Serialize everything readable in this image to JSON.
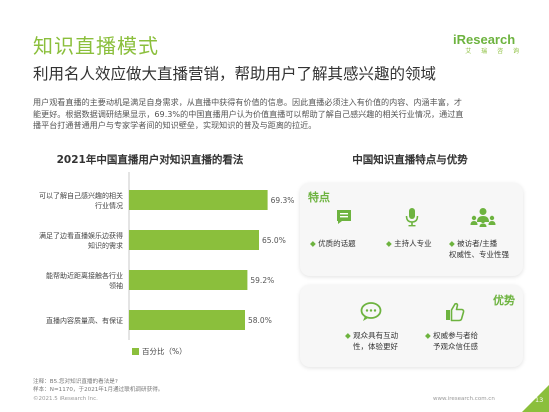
{
  "page": {
    "title": "知识直播模式",
    "subtitle": "利用名人效应做大直播营销，帮助用户了解其感兴趣的领域",
    "paragraph_lines": [
      "用户观看直播的主要动机是满足自身需求，从直播中获得有价值的信息。因此直播必须注入有价值的内容、内涵丰富，才",
      "能更好。根据数据调研结果显示，69.3%的中国直播用户认为价值直播可以帮助了解自己感兴趣的相关行业情况，通过直",
      "播平台打通普通用户与专家学者间的知识壁垒，实现知识的普及与距离的拉近。"
    ]
  },
  "logo": {
    "text": "iResearch",
    "sub": "艾 瑞 咨 询"
  },
  "chart_data": {
    "type": "bar",
    "orientation": "horizontal",
    "title": "2021年中国直播用户对知识直播的看法",
    "categories": [
      [
        "可以了解自己感兴趣的相关",
        "行业情况"
      ],
      [
        "满足了边看直播娱乐边获得",
        "知识的需求"
      ],
      [
        "能帮助近距离接触各行业",
        "领袖"
      ],
      [
        "直播内容质量高、有保证"
      ]
    ],
    "values": [
      69.3,
      65.0,
      59.2,
      58.0
    ],
    "value_labels": [
      "69.3%",
      "65.0%",
      "59.2%",
      "58.0%"
    ],
    "series": [
      {
        "name": "百分比（%）",
        "values": [
          69.3,
          65.0,
          59.2,
          58.0
        ]
      }
    ],
    "xlim": [
      0,
      75
    ],
    "bar_color": "#8bbf3c",
    "legend": "bottom"
  },
  "right": {
    "title": "中国知识直播特点与优势",
    "features_label": "特点",
    "features": [
      {
        "icon": "chat-list-icon",
        "lines": [
          "优质的话题"
        ]
      },
      {
        "icon": "microphone-icon",
        "lines": [
          "主持人专业"
        ]
      },
      {
        "icon": "audience-icon",
        "lines": [
          "被访者/主播",
          "权威性、专业性强"
        ]
      }
    ],
    "advantages_label": "优势",
    "advantages": [
      {
        "icon": "speech-bubble-icon",
        "lines": [
          "观众具有互动",
          "性，体验更好"
        ]
      },
      {
        "icon": "thumbs-up-icon",
        "lines": [
          "权威参与者给",
          "予观众信任感"
        ]
      }
    ]
  },
  "footnote": {
    "lines": [
      "注释：B5.您对知识直播的看法是?",
      "样本：N=1170，于2021年1月通过联机调研获得。"
    ]
  },
  "footer": {
    "left": "©2021.5 iResearch Inc.",
    "right": "www.iresearch.com.cn",
    "page_number": "13"
  },
  "colors": {
    "accent": "#8bbf3c",
    "accent_dark": "#6db33f",
    "text": "#333333"
  }
}
